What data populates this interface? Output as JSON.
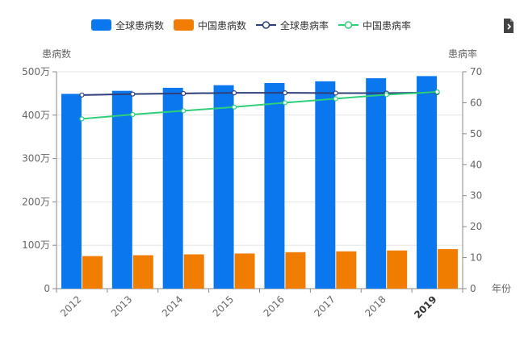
{
  "legend": {
    "global_count": "全球患病数",
    "china_count": "中国患病数",
    "global_rate": "全球患病率",
    "china_rate": "中国患病率"
  },
  "toolbox": {
    "icon": "save-as-image-icon"
  },
  "colors": {
    "global_count": "#0a77ee",
    "china_count": "#f07c00",
    "global_rate": "#2f3f7a",
    "china_rate": "#2dcf7b",
    "axis": "#888888",
    "grid": "#e6e6e6",
    "label": "#666666"
  },
  "chart_data": {
    "type": "bar",
    "title": "",
    "xlabel": "年份",
    "ylabel": "患病数",
    "y2label": "患病率",
    "categories": [
      "2012",
      "2013",
      "2014",
      "2015",
      "2016",
      "2017",
      "2018",
      "2019"
    ],
    "y_ticks": [
      "0",
      "100万",
      "200万",
      "300万",
      "400万",
      "500万"
    ],
    "y2_ticks": [
      "0",
      "10",
      "20",
      "30",
      "40",
      "50",
      "60",
      "70"
    ],
    "ylim": [
      0,
      500
    ],
    "y2lim": [
      0,
      70
    ],
    "series": [
      {
        "name": "全球患病数",
        "type": "bar",
        "axis": "left",
        "values": [
          449,
          456,
          463,
          469,
          474,
          478,
          485,
          490
        ]
      },
      {
        "name": "中国患病数",
        "type": "bar",
        "axis": "left",
        "values": [
          75,
          77,
          79,
          81,
          84,
          86,
          88,
          91
        ]
      },
      {
        "name": "全球患病率",
        "type": "line",
        "axis": "right",
        "values": [
          62.5,
          62.8,
          63.0,
          63.2,
          63.2,
          63.1,
          63.1,
          63.3
        ]
      },
      {
        "name": "中国患病率",
        "type": "line",
        "axis": "right",
        "values": [
          54.8,
          56.2,
          57.4,
          58.6,
          60.0,
          61.3,
          62.6,
          63.5
        ]
      }
    ]
  }
}
